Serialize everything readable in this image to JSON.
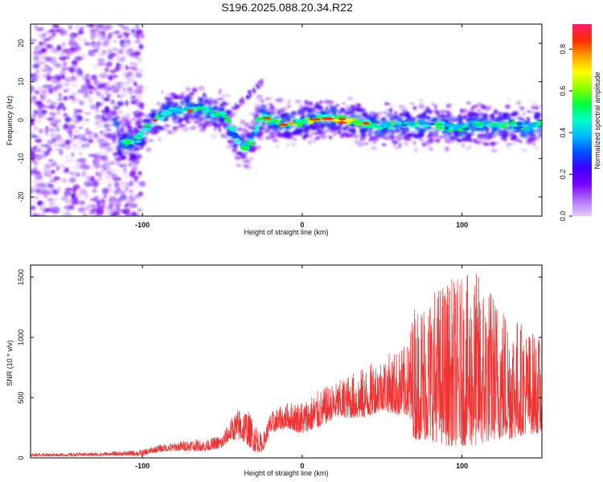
{
  "title": "S196.2025.088.20.34.R22",
  "chart_data": [
    {
      "type": "heatmap",
      "xlabel": "Height of straight line (km)",
      "ylabel": "Frequency (Hz)",
      "xlim": [
        -170,
        150
      ],
      "ylim": [
        -25,
        25
      ],
      "x_ticks": [
        -100,
        0,
        100
      ],
      "y_ticks": [
        -20,
        -10,
        0,
        10,
        20
      ],
      "colorbar": {
        "label": "Normalized spectral amplitude",
        "range": [
          0,
          0.92
        ],
        "ticks": [
          "0.0",
          "0.2",
          "0.4",
          "0.6",
          "0.8"
        ],
        "stops": [
          "#e6ccff",
          "#b070ff",
          "#7a00ff",
          "#3d00ff",
          "#0050ff",
          "#00b8ff",
          "#00ffcc",
          "#00ff40",
          "#8cff00",
          "#ffff00",
          "#ffa000",
          "#ff2a00",
          "#ff1b6b"
        ]
      },
      "ridge": [
        [
          -115,
          -6
        ],
        [
          -105,
          -6
        ],
        [
          -95,
          -1
        ],
        [
          -85,
          2
        ],
        [
          -75,
          3
        ],
        [
          -65,
          3
        ],
        [
          -55,
          2
        ],
        [
          -48,
          1
        ],
        [
          -40,
          -6
        ],
        [
          -35,
          -7
        ],
        [
          -30,
          -4
        ],
        [
          -26,
          1
        ],
        [
          -20,
          0
        ],
        [
          -10,
          -1
        ],
        [
          0,
          -0.5
        ],
        [
          10,
          0.5
        ],
        [
          20,
          0.5
        ],
        [
          30,
          0
        ],
        [
          40,
          -1
        ],
        [
          50,
          -1.5
        ],
        [
          60,
          -1
        ],
        [
          70,
          -1.5
        ],
        [
          80,
          -1
        ],
        [
          90,
          -1.5
        ],
        [
          100,
          -2
        ],
        [
          110,
          -1
        ],
        [
          120,
          -1.5
        ],
        [
          130,
          -1
        ],
        [
          140,
          -2
        ],
        [
          150,
          -1
        ]
      ],
      "noise_region_x": [
        -170,
        -100
      ]
    },
    {
      "type": "line",
      "xlabel": "Height of straight line (km)",
      "ylabel": "SNR (10 * v/v)",
      "xlim": [
        -170,
        150
      ],
      "ylim": [
        0,
        1600
      ],
      "x_ticks": [
        -100,
        0,
        100
      ],
      "y_ticks": [
        0,
        500,
        1000,
        1500
      ],
      "color": "#ee3333",
      "envelope": [
        [
          -170,
          15,
          40
        ],
        [
          -150,
          15,
          40
        ],
        [
          -120,
          20,
          50
        ],
        [
          -100,
          20,
          70
        ],
        [
          -90,
          50,
          110
        ],
        [
          -80,
          60,
          130
        ],
        [
          -70,
          60,
          160
        ],
        [
          -60,
          60,
          150
        ],
        [
          -50,
          80,
          200
        ],
        [
          -45,
          150,
          320
        ],
        [
          -40,
          150,
          420
        ],
        [
          -35,
          120,
          420
        ],
        [
          -30,
          50,
          320
        ],
        [
          -25,
          50,
          180
        ],
        [
          -20,
          200,
          380
        ],
        [
          -10,
          250,
          460
        ],
        [
          0,
          200,
          480
        ],
        [
          10,
          250,
          560
        ],
        [
          20,
          330,
          620
        ],
        [
          30,
          330,
          700
        ],
        [
          40,
          330,
          760
        ],
        [
          50,
          400,
          850
        ],
        [
          60,
          350,
          900
        ],
        [
          66,
          350,
          950
        ],
        [
          70,
          150,
          1300
        ],
        [
          80,
          150,
          1400
        ],
        [
          90,
          100,
          1500
        ],
        [
          100,
          100,
          1500
        ],
        [
          110,
          100,
          1560
        ],
        [
          120,
          150,
          1400
        ],
        [
          130,
          150,
          1250
        ],
        [
          140,
          200,
          1100
        ],
        [
          150,
          200,
          1000
        ]
      ]
    }
  ]
}
